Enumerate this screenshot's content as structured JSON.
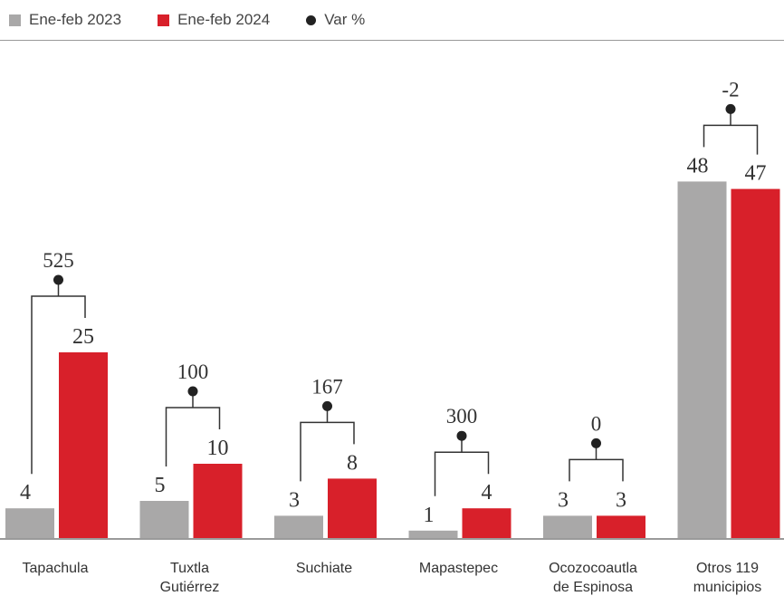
{
  "legend": {
    "series_2023": "Ene-feb 2023",
    "series_2024": "Ene-feb 2024",
    "var": "Var %"
  },
  "colors": {
    "series_2023": "#a9a8a8",
    "series_2024": "#d8202a",
    "bracket": "#333333",
    "axis": "#9a9a9a"
  },
  "chart_data": {
    "type": "bar",
    "categories": [
      [
        "Tapachula"
      ],
      [
        "Tuxtla",
        "Gutiérrez"
      ],
      [
        "Suchiate"
      ],
      [
        "Mapastepec"
      ],
      [
        "Ocozocoautla",
        "de Espinosa"
      ],
      [
        "Otros 119",
        "municipios"
      ]
    ],
    "series": [
      {
        "name": "Ene-feb 2023",
        "values": [
          4,
          5,
          3,
          1,
          3,
          48
        ]
      },
      {
        "name": "Ene-feb 2024",
        "values": [
          25,
          10,
          8,
          4,
          3,
          47
        ]
      }
    ],
    "var_pct": {
      "name": "Var %",
      "values": [
        "525",
        "100",
        "167",
        "300",
        "0",
        "-2"
      ]
    },
    "ylim": [
      0,
      50
    ],
    "grid": false,
    "legend_position": "top-left"
  }
}
